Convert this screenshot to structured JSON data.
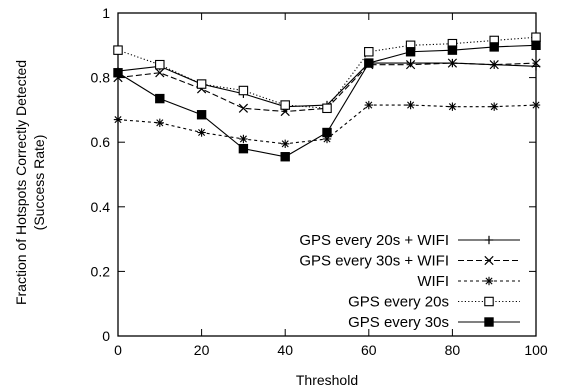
{
  "chart_data": {
    "type": "line",
    "xlabel": "Threshold",
    "ylabel": [
      "Fraction of Hotspots Correctly Detected",
      "(Success Rate)"
    ],
    "xlim": [
      0,
      100
    ],
    "ylim": [
      0,
      1
    ],
    "xticks": [
      0,
      20,
      40,
      60,
      80,
      100
    ],
    "yticks": [
      0,
      0.2,
      0.4,
      0.6,
      0.8,
      1
    ],
    "ytick_labels": [
      "0",
      "0.2",
      "0.4",
      "0.6",
      "0.8",
      "1"
    ],
    "grid": false,
    "legend_position": "bottom-right",
    "x": [
      0,
      10,
      20,
      30,
      40,
      50,
      60,
      70,
      80,
      90,
      100
    ],
    "series": [
      {
        "name": "GPS every 20s + WIFI",
        "marker": "plus",
        "dash": "solid",
        "values": [
          0.82,
          0.835,
          0.78,
          0.75,
          0.71,
          0.715,
          0.845,
          0.845,
          0.845,
          0.84,
          0.835
        ]
      },
      {
        "name": "GPS every 30s + WIFI",
        "marker": "x",
        "dash": "dashed",
        "values": [
          0.8,
          0.815,
          0.765,
          0.705,
          0.695,
          0.705,
          0.84,
          0.84,
          0.845,
          0.84,
          0.845
        ]
      },
      {
        "name": "WIFI",
        "marker": "asterisk",
        "dash": "short-dashed",
        "values": [
          0.67,
          0.66,
          0.63,
          0.61,
          0.595,
          0.61,
          0.715,
          0.715,
          0.71,
          0.71,
          0.715
        ]
      },
      {
        "name": "GPS every 20s",
        "marker": "open-square",
        "dash": "dotted",
        "values": [
          0.885,
          0.84,
          0.78,
          0.76,
          0.715,
          0.705,
          0.88,
          0.9,
          0.905,
          0.915,
          0.925
        ]
      },
      {
        "name": "GPS every 30s",
        "marker": "filled-square",
        "dash": "solid",
        "values": [
          0.815,
          0.735,
          0.685,
          0.58,
          0.555,
          0.63,
          0.845,
          0.88,
          0.885,
          0.895,
          0.9
        ]
      }
    ]
  }
}
